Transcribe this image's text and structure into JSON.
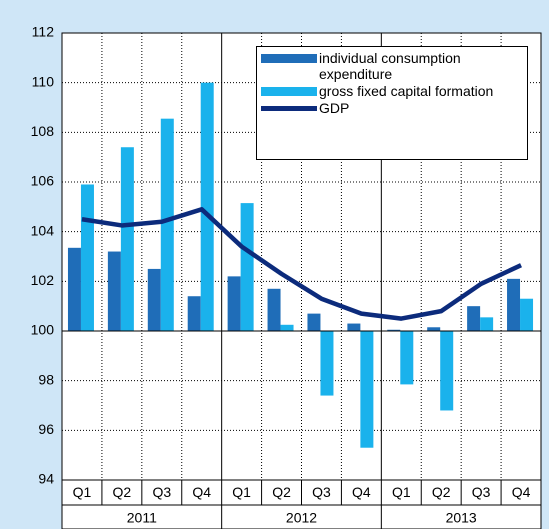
{
  "chart_data": {
    "type": "bar",
    "categories": [
      "Q1",
      "Q2",
      "Q3",
      "Q4",
      "Q1",
      "Q2",
      "Q3",
      "Q4",
      "Q1",
      "Q2",
      "Q3",
      "Q4"
    ],
    "category_groups": [
      "2011",
      "2012",
      "2013"
    ],
    "series": [
      {
        "name": "individual consumption expenditure",
        "type": "bar",
        "color": "#1f6db8",
        "values": [
          103.35,
          103.2,
          102.5,
          101.4,
          102.2,
          101.7,
          100.7,
          100.3,
          100.05,
          100.15,
          101.0,
          102.1
        ]
      },
      {
        "name": "gross fixed capital formation",
        "type": "bar",
        "color": "#1ab2ec",
        "values": [
          105.9,
          107.4,
          108.55,
          110.0,
          105.15,
          100.25,
          97.4,
          95.3,
          97.85,
          96.8,
          100.55,
          101.3
        ]
      },
      {
        "name": "GDP",
        "type": "line",
        "color": "#0c2b7c",
        "values": [
          104.5,
          104.25,
          104.4,
          104.9,
          103.4,
          102.3,
          101.3,
          100.7,
          100.5,
          100.8,
          101.9,
          102.65
        ]
      }
    ],
    "ylim": [
      94,
      112
    ],
    "yticks": [
      94,
      96,
      98,
      100,
      102,
      104,
      106,
      108,
      110,
      112
    ],
    "base": 100,
    "grid": true,
    "legend": "top-right"
  }
}
